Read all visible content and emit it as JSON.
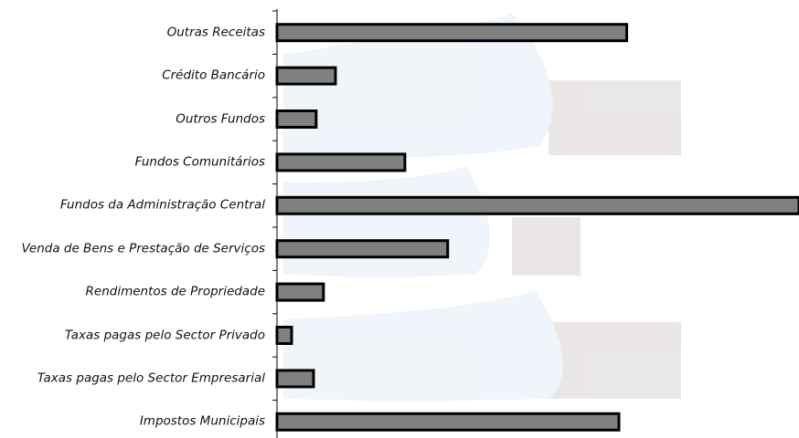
{
  "chart_data": {
    "type": "bar",
    "orientation": "horizontal",
    "categories": [
      "Outras Receitas",
      "Crédito Bancário",
      "Outros Fundos",
      "Fundos Comunitários",
      "Fundos da Administração Central",
      "Venda de Bens e Prestação de Serviços",
      "Rendimentos de Propriedade",
      "Taxas pagas pelo Sector Privado",
      "Taxas pagas pelo Sector Empresarial",
      "Impostos Municipais"
    ],
    "values": [
      67,
      11.2,
      7.5,
      24.5,
      100,
      32.7,
      8.9,
      2.8,
      7,
      65.5
    ],
    "color": "#808080",
    "xlim": [
      0,
      100
    ]
  }
}
